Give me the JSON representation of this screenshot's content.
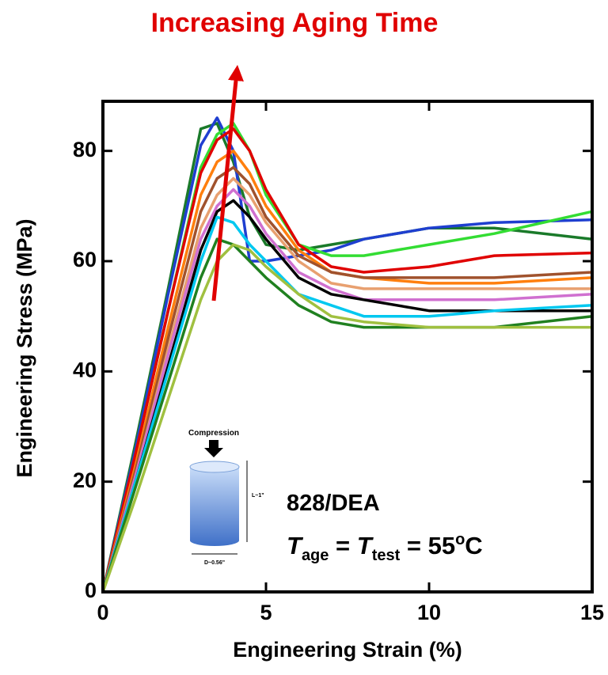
{
  "chart_data": {
    "type": "line",
    "title": "Increasing Aging Time",
    "xlabel": "Engineering Strain (%)",
    "ylabel": "Engineering Stress (MPa)",
    "annotation": "828/DEA",
    "condition_parts": [
      "T",
      "age",
      " = ",
      "T",
      "test",
      " = 55",
      "o",
      "C"
    ],
    "inset": {
      "label": "Compression",
      "length": "L~1\"",
      "diameter": "D~0.56\""
    },
    "xlim": [
      0,
      15
    ],
    "xticks": [
      0,
      5,
      10,
      15
    ],
    "ylim": [
      0,
      89
    ],
    "yticks": [
      0,
      20,
      40,
      60,
      80
    ],
    "x": [
      0,
      1,
      2,
      3,
      3.5,
      4,
      4.5,
      5,
      6,
      7,
      8,
      10,
      12,
      15
    ],
    "series": [
      {
        "color": "#1a7a2a",
        "values": [
          0,
          27,
          55,
          84,
          85,
          78,
          68,
          63,
          62,
          63,
          64,
          66,
          66,
          64
        ]
      },
      {
        "color": "#1f3fd0",
        "values": [
          0,
          26,
          54,
          81,
          86,
          80,
          60,
          60,
          61,
          62,
          64,
          66,
          67,
          67.5
        ]
      },
      {
        "color": "#33dd33",
        "values": [
          0,
          25,
          51,
          77,
          83,
          85,
          80,
          72,
          63,
          61,
          61,
          63,
          65,
          69
        ]
      },
      {
        "color": "#e00000",
        "values": [
          0,
          25,
          51,
          76,
          82,
          84,
          80,
          73,
          63,
          59,
          58,
          59,
          61,
          61.5
        ]
      },
      {
        "color": "#ff7f0e",
        "values": [
          0,
          23,
          48,
          72,
          78,
          80,
          76,
          70,
          62,
          58,
          57,
          56,
          56,
          57
        ]
      },
      {
        "color": "#a0522d",
        "values": [
          0,
          22,
          46,
          69,
          75,
          77,
          74,
          68,
          61,
          58,
          57,
          57,
          57,
          58
        ]
      },
      {
        "color": "#e8a070",
        "values": [
          0,
          21,
          44,
          66,
          72,
          75,
          72,
          67,
          60,
          56,
          55,
          55,
          55,
          55
        ]
      },
      {
        "color": "#d070d0",
        "values": [
          0,
          21,
          43,
          64,
          70,
          73,
          70,
          65,
          58,
          55,
          53,
          53,
          53,
          54
        ]
      },
      {
        "color": "#000000",
        "values": [
          0,
          20,
          41,
          62,
          69,
          71,
          68,
          64,
          57,
          54,
          53,
          51,
          51,
          51
        ]
      },
      {
        "color": "#00c8f0",
        "values": [
          0,
          20,
          40,
          60,
          68,
          67,
          63,
          60,
          54,
          52,
          50,
          50,
          51,
          52
        ]
      },
      {
        "color": "#208020",
        "values": [
          0,
          19,
          38,
          57,
          64,
          63,
          60,
          57,
          52,
          49,
          48,
          48,
          48,
          50
        ]
      },
      {
        "color": "#a0c040",
        "values": [
          0,
          17,
          35,
          53,
          60,
          63,
          62,
          59,
          54,
          50,
          49,
          48,
          48,
          48
        ]
      }
    ]
  }
}
